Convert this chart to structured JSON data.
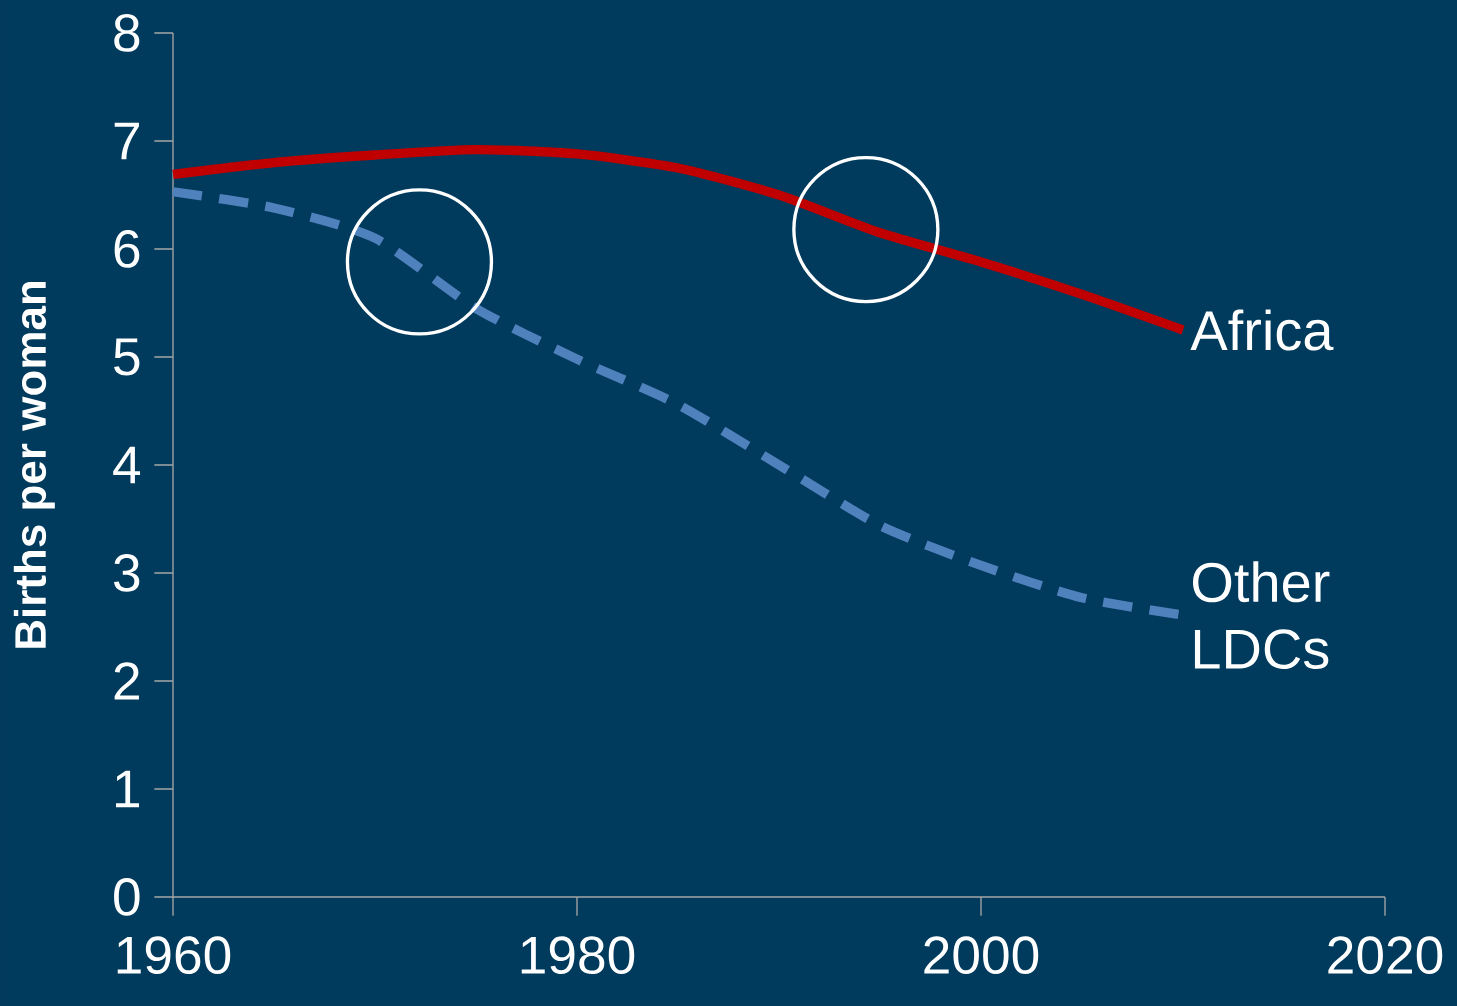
{
  "chart_data": {
    "type": "line",
    "ylabel": "Births per woman",
    "x": [
      1960,
      1965,
      1970,
      1975,
      1980,
      1985,
      1990,
      1995,
      2000,
      2005,
      2010
    ],
    "series": [
      {
        "name": "Africa",
        "color": "#c00000",
        "line_style": "solid",
        "values": [
          6.69,
          6.8,
          6.87,
          6.92,
          6.88,
          6.75,
          6.5,
          6.15,
          5.88,
          5.58,
          5.25
        ]
      },
      {
        "name": "Other LDCs",
        "color": "#4f81bd",
        "line_style": "dashed",
        "values": [
          6.53,
          6.38,
          6.1,
          5.45,
          4.98,
          4.56,
          4.0,
          3.44,
          3.07,
          2.77,
          2.61
        ]
      }
    ],
    "xlim": [
      1960,
      2020
    ],
    "ylim": [
      0,
      8
    ],
    "xticks": [
      1960,
      1980,
      2000,
      2020
    ],
    "yticks": [
      0,
      1,
      2,
      3,
      4,
      5,
      6,
      7,
      8
    ],
    "grid": false,
    "legend": false,
    "marker": "none"
  }
}
